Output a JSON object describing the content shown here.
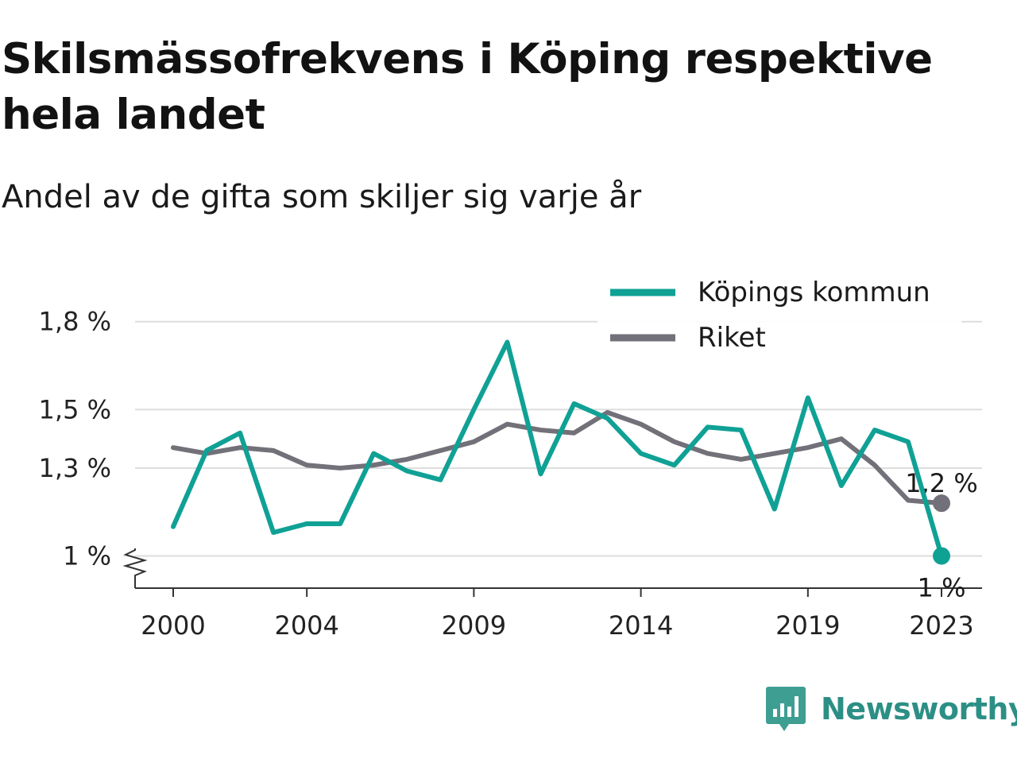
{
  "title": "Skilsmässofrekvens i Köping respektive hela landet",
  "subtitle": "Andel av de gifta som skiljer sig varje år",
  "brand": "Newsworthy",
  "colors": {
    "kopings": "#10a195",
    "riket": "#727078",
    "grid": "#dddddd",
    "axis": "#333333"
  },
  "chart_data": {
    "type": "line",
    "x": [
      2000,
      2001,
      2002,
      2003,
      2004,
      2005,
      2006,
      2007,
      2008,
      2009,
      2010,
      2011,
      2012,
      2013,
      2014,
      2015,
      2016,
      2017,
      2018,
      2019,
      2020,
      2021,
      2022,
      2023
    ],
    "x_ticks": [
      "2000",
      "2004",
      "2009",
      "2014",
      "2019",
      "2023"
    ],
    "y_ticks": [
      "1 %",
      "1,3 %",
      "1,5 %",
      "1,8 %"
    ],
    "ylim": [
      0.89,
      1.84
    ],
    "grid": true,
    "legend_position": "top-right",
    "series": [
      {
        "name": "Köpings kommun",
        "color": "#10a195",
        "values": [
          1.1,
          1.36,
          1.42,
          1.08,
          1.11,
          1.11,
          1.35,
          1.29,
          1.26,
          1.5,
          1.73,
          1.28,
          1.52,
          1.47,
          1.35,
          1.31,
          1.44,
          1.43,
          1.16,
          1.54,
          1.24,
          1.43,
          1.39,
          1.0
        ],
        "end_label": "1 %"
      },
      {
        "name": "Riket",
        "color": "#727078",
        "values": [
          1.37,
          1.35,
          1.37,
          1.36,
          1.31,
          1.3,
          1.31,
          1.33,
          1.36,
          1.39,
          1.45,
          1.43,
          1.42,
          1.49,
          1.45,
          1.39,
          1.35,
          1.33,
          1.35,
          1.37,
          1.4,
          1.31,
          1.19,
          1.18
        ],
        "end_label": "1,2 %"
      }
    ]
  }
}
